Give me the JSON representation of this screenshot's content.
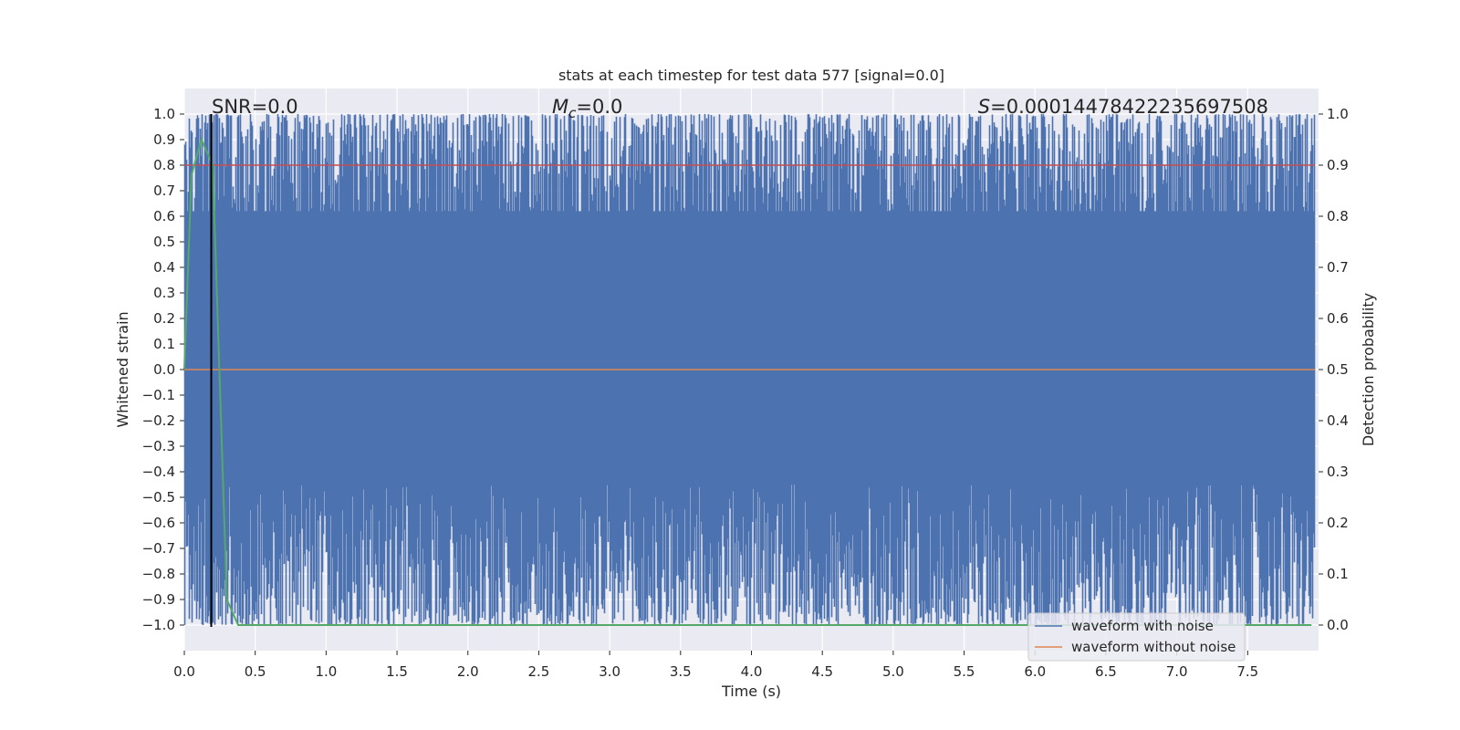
{
  "chart_data": {
    "type": "line",
    "title": "stats at each timestep for test data 577 [signal=0.0]",
    "xlabel": "Time (s)",
    "ylabel": "Whitened strain",
    "y2label": "Detection probability",
    "xlim": [
      0.0,
      8.0
    ],
    "ylim": [
      -1.1,
      1.1
    ],
    "y2lim": [
      -0.05,
      1.05
    ],
    "x_ticks": [
      0.0,
      0.5,
      1.0,
      1.5,
      2.0,
      2.5,
      3.0,
      3.5,
      4.0,
      4.5,
      5.0,
      5.5,
      6.0,
      6.5,
      7.0,
      7.5
    ],
    "x_tick_labels": [
      "0.0",
      "0.5",
      "1.0",
      "1.5",
      "2.0",
      "2.5",
      "3.0",
      "3.5",
      "4.0",
      "4.5",
      "5.0",
      "5.5",
      "6.0",
      "6.5",
      "7.0",
      "7.5"
    ],
    "y_ticks": [
      1.0,
      0.9,
      0.8,
      0.7,
      0.6,
      0.5,
      0.4,
      0.3,
      0.2,
      0.1,
      0.0,
      -0.1,
      -0.2,
      -0.3,
      -0.4,
      -0.5,
      -0.6,
      -0.7,
      -0.8,
      -0.9,
      -1.0
    ],
    "y_tick_labels": [
      "1.0",
      "0.9",
      "0.8",
      "0.7",
      "0.6",
      "0.5",
      "0.4",
      "0.3",
      "0.2",
      "0.1",
      "0.0",
      "−0.1",
      "−0.2",
      "−0.3",
      "−0.4",
      "−0.5",
      "−0.6",
      "−0.7",
      "−0.8",
      "−0.9",
      "−1.0"
    ],
    "y2_ticks": [
      1.0,
      0.9,
      0.8,
      0.7,
      0.6,
      0.5,
      0.4,
      0.3,
      0.2,
      0.1,
      0.0
    ],
    "y2_tick_labels": [
      "1.0",
      "0.9",
      "0.8",
      "0.7",
      "0.6",
      "0.5",
      "0.4",
      "0.3",
      "0.2",
      "0.1",
      "0.0"
    ],
    "annotations": {
      "snr": "SNR=0.0",
      "mc_symbol": "M",
      "mc_subscript": "c",
      "mc_value": "=0.0",
      "s_symbol": "S",
      "s_value": "=0.00014478422235697508"
    },
    "series": [
      {
        "name": "waveform with noise",
        "axis": "left",
        "color": "#4c72b0",
        "description": "dense noise filling approximately -1.0 to 1.0 over 0 to 8 s",
        "range": [
          -1.0,
          1.0
        ]
      },
      {
        "name": "waveform without noise",
        "axis": "left",
        "color": "#dd8452",
        "x": [
          0.0,
          8.0
        ],
        "y": [
          0.0,
          0.0
        ]
      },
      {
        "name": "detection probability",
        "axis": "right",
        "color": "#55a868",
        "x": [
          0.0,
          0.05,
          0.12,
          0.2,
          0.3,
          0.38,
          7.95
        ],
        "y": [
          0.5,
          0.88,
          0.95,
          0.9,
          0.05,
          0.0,
          0.0
        ]
      }
    ],
    "hlines": [
      {
        "axis": "right",
        "y": 0.9,
        "color": "#c44e52"
      }
    ],
    "vlines": [
      {
        "x": 0.19,
        "color": "#000000"
      }
    ],
    "legend": {
      "position": "lower-right",
      "entries": [
        {
          "label": "waveform with noise",
          "color": "#4c72b0"
        },
        {
          "label": "waveform without noise",
          "color": "#dd8452"
        }
      ]
    },
    "grid": true,
    "background": "#eaeaf2"
  }
}
